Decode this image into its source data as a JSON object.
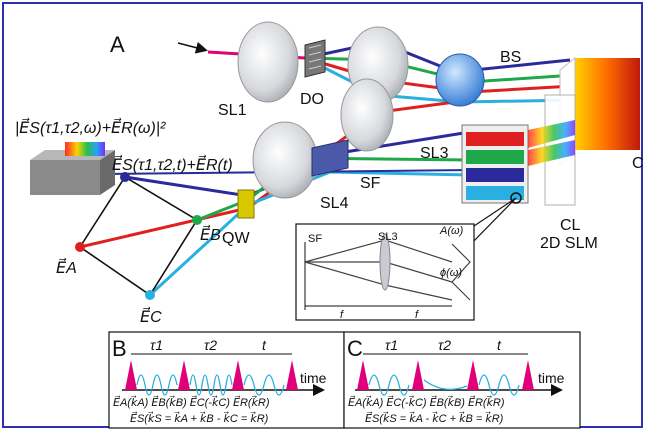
{
  "panel_labels": {
    "a": "A",
    "b": "B",
    "c": "C"
  },
  "components": {
    "sl1": "SL1",
    "do": "DO",
    "bs": "BS",
    "sl3": "SL3",
    "sf": "SF",
    "sl4": "SL4",
    "qw": "QW",
    "cl": "CL",
    "slm": "2D SLM",
    "c_cut": "C"
  },
  "equations": {
    "spectrum": "|E⃗S(τ1,τ2,ω)+E⃗R(ω)|²",
    "time_field": "E⃗S(τ1,τ2,t)+E⃗R(t)",
    "ea": "E⃗A",
    "eb": "E⃗B",
    "ec": "E⃗C"
  },
  "inset": {
    "sf": "SF",
    "sl3": "SL3",
    "a_omega": "A(ω)",
    "phi_omega": "ϕ(ω)",
    "f1": "f",
    "f2": "f"
  },
  "panel_b": {
    "tau1": "τ1",
    "tau2": "τ2",
    "t": "t",
    "time": "time",
    "row1": "E⃗A(k⃗A)  E⃗B(k⃗B)  E⃗C(-k⃗C)  E⃗R(k⃗R)",
    "row2": "E⃗S(k⃗S = k⃗A + k⃗B - k⃗C = k⃗R)"
  },
  "panel_c": {
    "tau1": "τ1",
    "tau2": "τ2",
    "t": "t",
    "time": "time",
    "row1": "E⃗A(k⃗A)  E⃗C(-k⃗C)  E⃗B(k⃗B)  E⃗R(k⃗R)",
    "row2": "E⃗S(k⃗S = k⃗A - k⃗C + k⃗B = k⃗R)"
  },
  "colors": {
    "red": "#e02020",
    "green": "#1fa84a",
    "blue": "#2a2a9a",
    "cyan": "#2ab0e0",
    "magenta": "#e0007a",
    "frame": "#2f2fb0"
  }
}
